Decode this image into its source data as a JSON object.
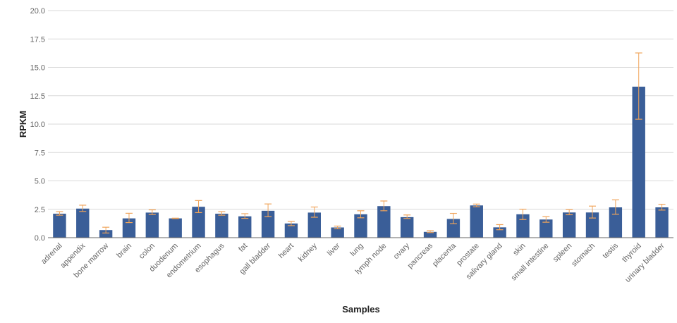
{
  "chart_data": {
    "type": "bar",
    "title": "",
    "xlabel": "Samples",
    "ylabel": "RPKM",
    "ylim": [
      0,
      20
    ],
    "yticks": [
      "0.0",
      "2.5",
      "5.0",
      "7.5",
      "10.0",
      "12.5",
      "15.0",
      "17.5",
      "20.0"
    ],
    "grid": true,
    "colors": {
      "bar": "#3a5e98",
      "error": "#f0a45a",
      "grid": "#d9d9d9",
      "axis": "#666666"
    },
    "categories": [
      "adrenal",
      "appendix",
      "bone marrow",
      "brain",
      "colon",
      "duodenum",
      "endometrium",
      "esophagus",
      "fat",
      "gall bladder",
      "heart",
      "kidney",
      "liver",
      "lung",
      "lymph node",
      "ovary",
      "pancreas",
      "placenta",
      "prostate",
      "salivary gland",
      "skin",
      "small intestine",
      "spleen",
      "stomach",
      "testis",
      "thyroid",
      "urinary bladder"
    ],
    "values": [
      2.11,
      2.56,
      0.67,
      1.7,
      2.21,
      1.7,
      2.72,
      2.11,
      1.88,
      2.37,
      1.25,
      2.21,
      0.9,
      2.06,
      2.78,
      1.81,
      0.51,
      1.65,
      2.84,
      0.91,
      2.06,
      1.6,
      2.22,
      2.22,
      2.67,
      13.3,
      2.67
    ],
    "error_low": [
      1.98,
      2.31,
      0.41,
      1.33,
      2.04,
      1.68,
      2.21,
      1.98,
      1.7,
      1.84,
      1.06,
      1.8,
      0.78,
      1.75,
      2.37,
      1.69,
      0.45,
      1.23,
      2.72,
      0.7,
      1.6,
      1.36,
      2.02,
      1.73,
      2.06,
      10.43,
      2.43
    ],
    "error_high": [
      2.29,
      2.86,
      0.92,
      2.15,
      2.45,
      1.72,
      3.27,
      2.29,
      2.11,
      2.97,
      1.43,
      2.7,
      1.02,
      2.37,
      3.23,
      2.0,
      0.62,
      2.14,
      2.96,
      1.15,
      2.51,
      1.85,
      2.47,
      2.78,
      3.33,
      16.27,
      2.94
    ]
  }
}
